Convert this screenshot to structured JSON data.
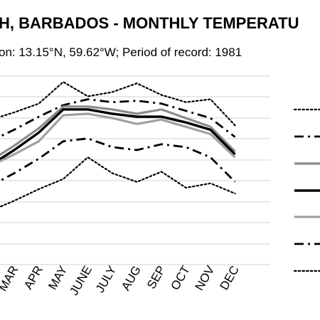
{
  "chart_data": {
    "type": "line",
    "title": "H, BARBADOS - MONTHLY TEMPERATU",
    "subtitle": "on: 13.15°N, 59.62°W; Period of record: 1981",
    "categories": [
      "MAR",
      "APR",
      "MAY",
      "JUNE",
      "JULY",
      "AUG",
      "SEP",
      "OCT",
      "NOV",
      "DEC"
    ],
    "xlabel": "",
    "ylabel": "",
    "grid": true,
    "legend": "right",
    "series": [
      {
        "style": "dotted",
        "color": "#000000",
        "width": 2.2,
        "values": [
          30.4,
          31.0,
          32.5,
          31.5,
          31.8,
          32.4,
          31.6,
          31.1,
          31.3,
          29.5
        ]
      },
      {
        "style": "dashdot",
        "color": "#000000",
        "width": 2.8,
        "values": [
          29.2,
          30.1,
          30.9,
          31.3,
          31.1,
          31.2,
          31.0,
          30.5,
          30.0,
          28.7
        ]
      },
      {
        "style": "solid",
        "color": "#8c8c8c",
        "width": 3.2,
        "values": [
          28.1,
          29.3,
          30.8,
          30.8,
          30.6,
          30.3,
          30.6,
          30.0,
          29.4,
          27.7
        ]
      },
      {
        "style": "solid",
        "color": "#000000",
        "width": 3.5,
        "values": [
          27.8,
          29.0,
          30.6,
          30.6,
          30.3,
          30.1,
          30.1,
          29.7,
          29.2,
          27.5
        ]
      },
      {
        "style": "solid",
        "color": "#a0a0a0",
        "width": 3.2,
        "values": [
          27.5,
          28.4,
          30.2,
          30.3,
          30.0,
          29.6,
          29.9,
          29.4,
          28.9,
          27.3
        ]
      },
      {
        "style": "dashdot",
        "color": "#000000",
        "width": 2.8,
        "values": [
          26.2,
          27.2,
          28.4,
          28.6,
          28.0,
          27.8,
          28.2,
          28.0,
          27.3,
          25.6
        ]
      },
      {
        "style": "dotted",
        "color": "#000000",
        "width": 2.2,
        "values": [
          24.3,
          25.1,
          25.8,
          27.3,
          26.2,
          25.6,
          26.3,
          25.2,
          25.5,
          24.8
        ]
      }
    ],
    "ylim": [
      19.9,
      32.9
    ]
  }
}
